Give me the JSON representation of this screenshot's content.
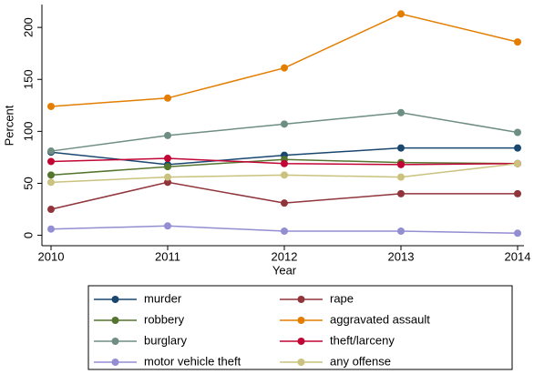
{
  "chart_data": {
    "type": "line",
    "x": [
      2010,
      2011,
      2012,
      2013,
      2014
    ],
    "xlim": [
      2010,
      2014
    ],
    "xticks": [
      2010,
      2011,
      2012,
      2013,
      2014
    ],
    "ylim": [
      -10,
      222
    ],
    "yticks": [
      0,
      50,
      100,
      150,
      200
    ],
    "xlabel": "Year",
    "ylabel": "Percent",
    "grid": false,
    "series": [
      {
        "name": "murder",
        "color": "#1a476f",
        "values": [
          80,
          68,
          77,
          84,
          84
        ]
      },
      {
        "name": "rape",
        "color": "#90353b",
        "values": [
          25,
          51,
          31,
          40,
          40
        ]
      },
      {
        "name": "robbery",
        "color": "#55752f",
        "values": [
          58,
          66,
          73,
          70,
          69
        ]
      },
      {
        "name": "aggravated assault",
        "color": "#e37e00",
        "values": [
          124,
          132,
          161,
          213,
          186
        ]
      },
      {
        "name": "burglary",
        "color": "#6e8e84",
        "values": [
          81,
          96,
          107,
          118,
          99
        ]
      },
      {
        "name": "theft/larceny",
        "color": "#c10534",
        "values": [
          71,
          74,
          69,
          68,
          69
        ]
      },
      {
        "name": "motor vehicle theft",
        "color": "#938dd2",
        "values": [
          6,
          9,
          4,
          4,
          2
        ]
      },
      {
        "name": "any offense",
        "color": "#cac27e",
        "values": [
          51,
          56,
          58,
          56,
          69
        ]
      }
    ]
  }
}
